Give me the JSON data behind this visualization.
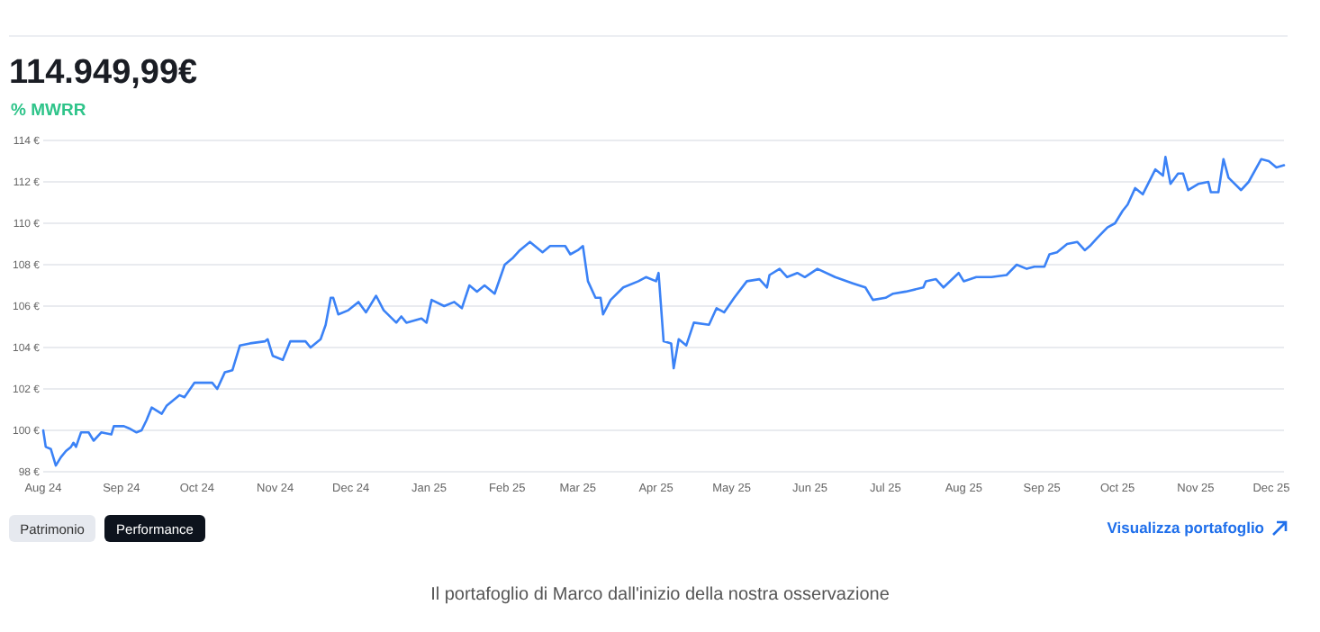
{
  "chart_data": {
    "type": "line",
    "title": "114.949,99€",
    "subtitle": "% MWRR",
    "grid": "y",
    "marker": "none",
    "line_style": "solid",
    "annotations": [
      "Patrimonio",
      "Performance",
      "Visualizza portafoglio",
      "Il portafoglio di Marco dall'inizio della nostra osservazione"
    ],
    "xlim": [
      "2024-08-01",
      "2025-12-06"
    ],
    "xticks": [
      {
        "value": "2024-08-01",
        "label": "Aug 24"
      },
      {
        "value": "2024-09-01",
        "label": "Sep 24"
      },
      {
        "value": "2024-10-01",
        "label": "Oct 24"
      },
      {
        "value": "2024-11-01",
        "label": "Nov 24"
      },
      {
        "value": "2024-12-01",
        "label": "Dec 24"
      },
      {
        "value": "2025-01-01",
        "label": "Jan 25"
      },
      {
        "value": "2025-02-01",
        "label": "Feb 25"
      },
      {
        "value": "2025-03-01",
        "label": "Mar 25"
      },
      {
        "value": "2025-04-01",
        "label": "Apr 25"
      },
      {
        "value": "2025-05-01",
        "label": "May 25"
      },
      {
        "value": "2025-06-01",
        "label": "Jun 25"
      },
      {
        "value": "2025-07-01",
        "label": "Jul 25"
      },
      {
        "value": "2025-08-01",
        "label": "Aug 25"
      },
      {
        "value": "2025-09-01",
        "label": "Sep 25"
      },
      {
        "value": "2025-10-01",
        "label": "Oct 25"
      },
      {
        "value": "2025-11-01",
        "label": "Nov 25"
      },
      {
        "value": "2025-12-01",
        "label": "Dec 25"
      }
    ],
    "ylim": [
      98,
      114
    ],
    "yticks": [
      {
        "value": 98,
        "label": "98 €"
      },
      {
        "value": 100,
        "label": "100 €"
      },
      {
        "value": 102,
        "label": "102 €"
      },
      {
        "value": 104,
        "label": "104 €"
      },
      {
        "value": 106,
        "label": "106 €"
      },
      {
        "value": 108,
        "label": "108 €"
      },
      {
        "value": 110,
        "label": "110 €"
      },
      {
        "value": 112,
        "label": "112 €"
      },
      {
        "value": 114,
        "label": "114 €"
      }
    ],
    "x": [
      "2024-08-01",
      "2024-08-02",
      "2024-08-04",
      "2024-08-06",
      "2024-08-08",
      "2024-08-10",
      "2024-08-12",
      "2024-08-13",
      "2024-08-14",
      "2024-08-16",
      "2024-08-19",
      "2024-08-21",
      "2024-08-24",
      "2024-08-28",
      "2024-08-29",
      "2024-09-02",
      "2024-09-04",
      "2024-09-07",
      "2024-09-09",
      "2024-09-11",
      "2024-09-13",
      "2024-09-17",
      "2024-09-19",
      "2024-09-24",
      "2024-09-26",
      "2024-09-30",
      "2024-10-07",
      "2024-10-09",
      "2024-10-12",
      "2024-10-15",
      "2024-10-18",
      "2024-10-22",
      "2024-10-28",
      "2024-10-29",
      "2024-10-31",
      "2024-11-04",
      "2024-11-07",
      "2024-11-13",
      "2024-11-15",
      "2024-11-19",
      "2024-11-21",
      "2024-11-23",
      "2024-11-24",
      "2024-11-26",
      "2024-11-30",
      "2024-12-04",
      "2024-12-07",
      "2024-12-11",
      "2024-12-14",
      "2024-12-19",
      "2024-12-21",
      "2024-12-23",
      "2024-12-29",
      "2024-12-31",
      "2025-01-02",
      "2025-01-07",
      "2025-01-11",
      "2025-01-14",
      "2025-01-17",
      "2025-01-20",
      "2025-01-23",
      "2025-01-27",
      "2025-01-31",
      "2025-02-03",
      "2025-02-06",
      "2025-02-10",
      "2025-02-15",
      "2025-02-18",
      "2025-02-24",
      "2025-02-26",
      "2025-03-01",
      "2025-03-03",
      "2025-03-05",
      "2025-03-08",
      "2025-03-10",
      "2025-03-11",
      "2025-03-14",
      "2025-03-19",
      "2025-03-25",
      "2025-03-28",
      "2025-04-01",
      "2025-04-02",
      "2025-04-04",
      "2025-04-07",
      "2025-04-08",
      "2025-04-10",
      "2025-04-13",
      "2025-04-16",
      "2025-04-22",
      "2025-04-25",
      "2025-04-28",
      "2025-05-02",
      "2025-05-07",
      "2025-05-12",
      "2025-05-15",
      "2025-05-16",
      "2025-05-20",
      "2025-05-23",
      "2025-05-27",
      "2025-05-30",
      "2025-06-04",
      "2025-06-11",
      "2025-06-18",
      "2025-06-23",
      "2025-06-26",
      "2025-07-01",
      "2025-07-04",
      "2025-07-09",
      "2025-07-16",
      "2025-07-17",
      "2025-07-21",
      "2025-07-24",
      "2025-07-30",
      "2025-08-01",
      "2025-08-06",
      "2025-08-12",
      "2025-08-18",
      "2025-08-22",
      "2025-08-26",
      "2025-08-29",
      "2025-09-02",
      "2025-09-04",
      "2025-09-07",
      "2025-09-11",
      "2025-09-15",
      "2025-09-18",
      "2025-09-20",
      "2025-09-23",
      "2025-09-27",
      "2025-09-30",
      "2025-10-03",
      "2025-10-05",
      "2025-10-08",
      "2025-10-11",
      "2025-10-16",
      "2025-10-19",
      "2025-10-20",
      "2025-10-22",
      "2025-10-25",
      "2025-10-27",
      "2025-10-29",
      "2025-11-02",
      "2025-11-06",
      "2025-11-07",
      "2025-11-10",
      "2025-11-12",
      "2025-11-14",
      "2025-11-19",
      "2025-11-22",
      "2025-11-27",
      "2025-11-30",
      "2025-12-03",
      "2025-12-06"
    ],
    "series": [
      {
        "color": "#3b82f6",
        "values": [
          100.0,
          99.2,
          99.1,
          98.3,
          98.7,
          99.0,
          99.2,
          99.4,
          99.2,
          99.9,
          99.9,
          99.5,
          99.9,
          99.8,
          100.2,
          100.2,
          100.1,
          99.9,
          100.0,
          100.5,
          101.1,
          100.8,
          101.2,
          101.7,
          101.6,
          102.3,
          102.3,
          102.0,
          102.8,
          102.9,
          104.1,
          104.2,
          104.3,
          104.4,
          103.6,
          103.4,
          104.3,
          104.3,
          104.0,
          104.4,
          105.1,
          106.4,
          106.4,
          105.6,
          105.8,
          106.2,
          105.7,
          106.5,
          105.8,
          105.2,
          105.5,
          105.2,
          105.4,
          105.2,
          106.3,
          106.0,
          106.2,
          105.9,
          107.0,
          106.7,
          107.0,
          106.6,
          108.0,
          108.3,
          108.7,
          109.1,
          108.6,
          108.9,
          108.9,
          108.5,
          108.7,
          108.9,
          107.2,
          106.4,
          106.4,
          105.6,
          106.3,
          106.9,
          107.2,
          107.4,
          107.2,
          107.6,
          104.3,
          104.2,
          103.0,
          104.4,
          104.1,
          105.2,
          105.1,
          105.9,
          105.7,
          106.4,
          107.2,
          107.3,
          106.9,
          107.5,
          107.8,
          107.4,
          107.6,
          107.4,
          107.8,
          107.4,
          107.1,
          106.9,
          106.3,
          106.4,
          106.6,
          106.7,
          106.9,
          107.2,
          107.3,
          106.9,
          107.6,
          107.2,
          107.4,
          107.4,
          107.5,
          108.0,
          107.8,
          107.9,
          107.9,
          108.5,
          108.6,
          109.0,
          109.1,
          108.7,
          108.9,
          109.3,
          109.8,
          110.0,
          110.6,
          110.9,
          111.7,
          111.4,
          112.6,
          112.3,
          113.2,
          111.9,
          112.4,
          112.4,
          111.6,
          111.9,
          112.0,
          111.5,
          111.5,
          113.1,
          112.2,
          111.6,
          112.0,
          113.1,
          113.0,
          112.7,
          112.8
        ]
      }
    ]
  }
}
